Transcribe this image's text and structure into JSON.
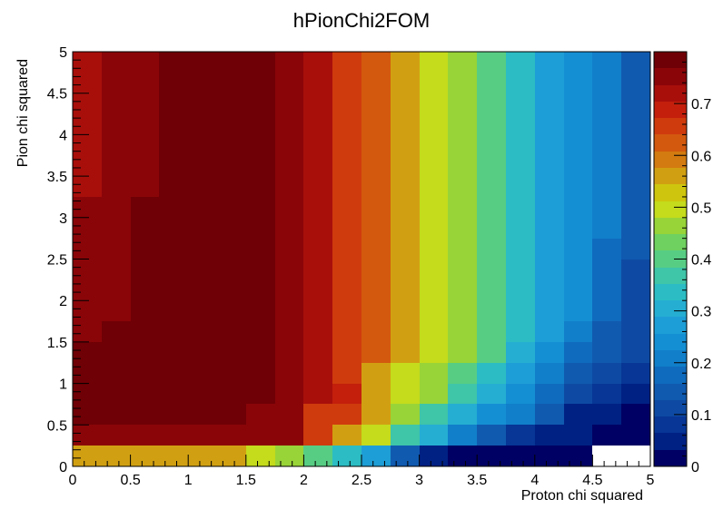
{
  "chart_data": {
    "type": "heatmap",
    "title": "hPionChi2FOM",
    "xlabel": "Proton chi squared",
    "ylabel": "Pion chi squared",
    "xlim": [
      0,
      5
    ],
    "ylim": [
      0,
      5
    ],
    "x_ticks": [
      "0",
      "0.5",
      "1",
      "1.5",
      "2",
      "2.5",
      "3",
      "3.5",
      "4",
      "4.5",
      "5"
    ],
    "y_ticks": [
      "0",
      "0.5",
      "1",
      "1.5",
      "2",
      "2.5",
      "3",
      "3.5",
      "4",
      "4.5",
      "5"
    ],
    "z_range": [
      0,
      0.8
    ],
    "z_ticks": [
      "0",
      "0.1",
      "0.2",
      "0.3",
      "0.4",
      "0.5",
      "0.6",
      "0.7"
    ],
    "colorbar_levels": 25,
    "x_bins": 20,
    "y_bins": 20,
    "bin_width": 0.25,
    "empty_value": 0,
    "rows_top_to_bottom": [
      [
        0.72,
        0.76,
        0.76,
        0.79,
        0.79,
        0.77,
        0.77,
        0.74,
        0.73,
        0.67,
        0.62,
        0.55,
        0.48,
        0.45,
        0.4,
        0.34,
        0.28,
        0.24,
        0.21,
        0.14
      ],
      [
        0.72,
        0.76,
        0.76,
        0.79,
        0.79,
        0.79,
        0.77,
        0.74,
        0.73,
        0.67,
        0.62,
        0.55,
        0.48,
        0.45,
        0.4,
        0.34,
        0.28,
        0.24,
        0.21,
        0.14
      ],
      [
        0.72,
        0.76,
        0.76,
        0.79,
        0.79,
        0.79,
        0.77,
        0.74,
        0.73,
        0.67,
        0.62,
        0.55,
        0.48,
        0.45,
        0.4,
        0.34,
        0.28,
        0.24,
        0.21,
        0.14
      ],
      [
        0.72,
        0.76,
        0.76,
        0.79,
        0.79,
        0.79,
        0.77,
        0.74,
        0.73,
        0.67,
        0.62,
        0.55,
        0.48,
        0.45,
        0.4,
        0.34,
        0.28,
        0.24,
        0.21,
        0.14
      ],
      [
        0.72,
        0.76,
        0.76,
        0.79,
        0.79,
        0.79,
        0.77,
        0.74,
        0.73,
        0.67,
        0.62,
        0.55,
        0.48,
        0.45,
        0.4,
        0.34,
        0.28,
        0.24,
        0.21,
        0.14
      ],
      [
        0.72,
        0.76,
        0.76,
        0.79,
        0.79,
        0.79,
        0.77,
        0.74,
        0.73,
        0.67,
        0.62,
        0.55,
        0.48,
        0.45,
        0.4,
        0.34,
        0.28,
        0.24,
        0.21,
        0.14
      ],
      [
        0.72,
        0.76,
        0.76,
        0.79,
        0.79,
        0.79,
        0.77,
        0.74,
        0.73,
        0.67,
        0.62,
        0.55,
        0.48,
        0.45,
        0.4,
        0.34,
        0.28,
        0.24,
        0.21,
        0.14
      ],
      [
        0.76,
        0.76,
        0.79,
        0.79,
        0.79,
        0.79,
        0.77,
        0.74,
        0.73,
        0.67,
        0.62,
        0.55,
        0.48,
        0.45,
        0.4,
        0.34,
        0.28,
        0.24,
        0.21,
        0.14
      ],
      [
        0.76,
        0.76,
        0.79,
        0.79,
        0.79,
        0.79,
        0.77,
        0.74,
        0.73,
        0.67,
        0.62,
        0.55,
        0.48,
        0.45,
        0.4,
        0.34,
        0.28,
        0.24,
        0.21,
        0.14
      ],
      [
        0.76,
        0.76,
        0.79,
        0.79,
        0.79,
        0.79,
        0.77,
        0.74,
        0.73,
        0.67,
        0.62,
        0.55,
        0.48,
        0.45,
        0.4,
        0.34,
        0.28,
        0.24,
        0.19,
        0.14
      ],
      [
        0.76,
        0.76,
        0.79,
        0.79,
        0.79,
        0.79,
        0.77,
        0.74,
        0.73,
        0.67,
        0.62,
        0.55,
        0.48,
        0.45,
        0.4,
        0.34,
        0.28,
        0.24,
        0.19,
        0.12
      ],
      [
        0.76,
        0.76,
        0.79,
        0.79,
        0.79,
        0.79,
        0.77,
        0.74,
        0.73,
        0.67,
        0.62,
        0.55,
        0.48,
        0.45,
        0.4,
        0.34,
        0.28,
        0.24,
        0.19,
        0.12
      ],
      [
        0.76,
        0.76,
        0.79,
        0.79,
        0.79,
        0.79,
        0.77,
        0.74,
        0.73,
        0.67,
        0.62,
        0.55,
        0.48,
        0.45,
        0.4,
        0.34,
        0.28,
        0.24,
        0.19,
        0.12
      ],
      [
        0.76,
        0.79,
        0.79,
        0.79,
        0.79,
        0.79,
        0.77,
        0.74,
        0.73,
        0.67,
        0.62,
        0.55,
        0.48,
        0.45,
        0.4,
        0.34,
        0.28,
        0.21,
        0.14,
        0.12
      ],
      [
        0.79,
        0.79,
        0.79,
        0.79,
        0.79,
        0.79,
        0.79,
        0.74,
        0.73,
        0.67,
        0.62,
        0.55,
        0.48,
        0.45,
        0.4,
        0.31,
        0.24,
        0.19,
        0.14,
        0.12
      ],
      [
        0.79,
        0.79,
        0.79,
        0.79,
        0.79,
        0.79,
        0.79,
        0.76,
        0.73,
        0.64,
        0.55,
        0.48,
        0.45,
        0.4,
        0.34,
        0.28,
        0.21,
        0.14,
        0.1,
        0.07
      ],
      [
        0.79,
        0.79,
        0.79,
        0.79,
        0.79,
        0.79,
        0.79,
        0.76,
        0.73,
        0.69,
        0.55,
        0.48,
        0.45,
        0.38,
        0.31,
        0.24,
        0.17,
        0.12,
        0.07,
        0.05
      ],
      [
        0.79,
        0.79,
        0.79,
        0.79,
        0.79,
        0.79,
        0.76,
        0.74,
        0.67,
        0.64,
        0.55,
        0.45,
        0.36,
        0.31,
        0.24,
        0.21,
        0.14,
        0.05,
        0.05,
        0.02
      ],
      [
        0.76,
        0.76,
        0.76,
        0.76,
        0.76,
        0.76,
        0.76,
        0.74,
        0.67,
        0.57,
        0.48,
        0.36,
        0.29,
        0.21,
        0.14,
        0.07,
        0.05,
        0.05,
        0.02,
        0.02
      ],
      [
        0.55,
        0.55,
        0.55,
        0.55,
        0.55,
        0.55,
        0.5,
        0.45,
        0.4,
        0.33,
        0.26,
        0.14,
        0.05,
        0.02,
        0.02,
        0.02,
        0.02,
        0.02,
        0,
        0
      ]
    ],
    "palette": [
      "#000064",
      "#002184",
      "#073696",
      "#0e4aa3",
      "#105ab0",
      "#0f6bbe",
      "#117fca",
      "#158fd4",
      "#1e9ed6",
      "#25aed2",
      "#2bbdc3",
      "#3fc5a8",
      "#57cd84",
      "#6fd15f",
      "#98d437",
      "#c4dc1c",
      "#cec60e",
      "#d1a012",
      "#d37b10",
      "#d3590e",
      "#cf3b0d",
      "#c31f0c",
      "#a80f0b",
      "#8a0508",
      "#6f0005"
    ]
  }
}
